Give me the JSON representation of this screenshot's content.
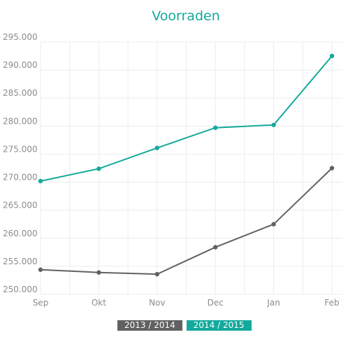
{
  "chart_data": {
    "type": "line",
    "title": "Voorraden",
    "categories": [
      "Sep",
      "Okt",
      "Nov",
      "Dec",
      "Jan",
      "Feb"
    ],
    "ylim": [
      250000,
      295000
    ],
    "yticks": [
      295000,
      290000,
      285000,
      280000,
      275000,
      270000,
      265000,
      260000,
      255000,
      250000
    ],
    "ytick_labels": [
      "295.000",
      "290.000",
      "285.000",
      "280.000",
      "275.000",
      "270.000",
      "265.000",
      "260.000",
      "255.000",
      "250.000"
    ],
    "grid": true,
    "legend_position": "bottom",
    "series": [
      {
        "name": "2013 / 2014",
        "color": "#616161",
        "values": [
          254400,
          253900,
          253600,
          258400,
          262500,
          272500
        ]
      },
      {
        "name": "2014 / 2015",
        "color": "#14a99d",
        "values": [
          270200,
          272400,
          276100,
          279700,
          280200,
          292500
        ]
      }
    ]
  }
}
